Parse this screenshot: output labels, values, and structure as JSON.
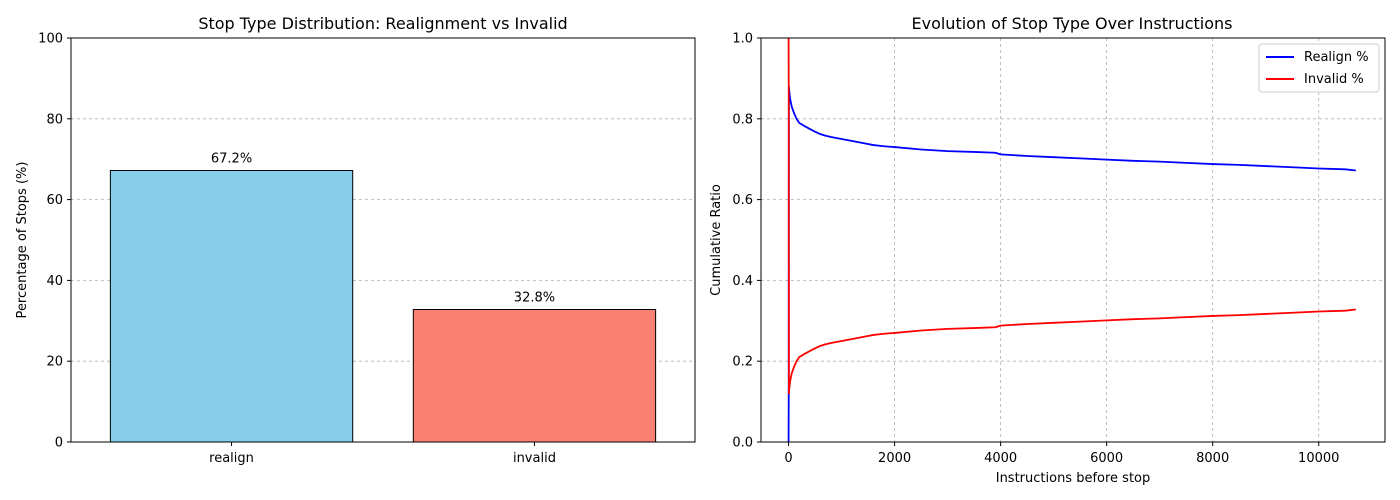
{
  "chart_data": [
    {
      "type": "bar",
      "title": "Stop Type Distribution: Realignment vs Invalid",
      "xlabel": "",
      "ylabel": "Percentage of Stops (%)",
      "categories": [
        "realign",
        "invalid"
      ],
      "values": [
        67.2,
        32.8
      ],
      "value_labels": [
        "67.2%",
        "32.8%"
      ],
      "colors": [
        "#87CEEB",
        "#FA8072"
      ],
      "edge_color": "#000000",
      "ylim": [
        0,
        100
      ],
      "yticks": [
        0,
        20,
        40,
        60,
        80,
        100
      ],
      "grid": "y-dashed"
    },
    {
      "type": "line",
      "title": "Evolution of Stop Type Over Instructions",
      "xlabel": "Instructions before stop",
      "ylabel": "Cumulative Ratio",
      "xlim": [
        -520,
        11250
      ],
      "ylim": [
        0.0,
        1.0
      ],
      "xticks": [
        0,
        2000,
        4000,
        6000,
        8000,
        10000
      ],
      "yticks": [
        0.0,
        0.2,
        0.4,
        0.6,
        0.8,
        1.0
      ],
      "grid": "both-dashed",
      "legend": "top-right",
      "series": [
        {
          "name": "Realign %",
          "color": "#0000FF",
          "x": [
            0,
            3,
            6,
            12,
            20,
            35,
            60,
            100,
            150,
            200,
            300,
            400,
            500,
            600,
            700,
            800,
            1000,
            1200,
            1400,
            1600,
            1800,
            2000,
            2500,
            3000,
            3500,
            3900,
            4000,
            4500,
            5000,
            5500,
            6000,
            6500,
            7000,
            7500,
            8000,
            8500,
            9000,
            9500,
            10000,
            10500,
            10700
          ],
          "y": [
            0.0,
            0.12,
            0.88,
            0.87,
            0.86,
            0.845,
            0.83,
            0.815,
            0.8,
            0.79,
            0.782,
            0.775,
            0.768,
            0.762,
            0.758,
            0.755,
            0.75,
            0.745,
            0.74,
            0.735,
            0.732,
            0.73,
            0.724,
            0.72,
            0.718,
            0.716,
            0.712,
            0.708,
            0.705,
            0.702,
            0.699,
            0.696,
            0.694,
            0.691,
            0.688,
            0.686,
            0.683,
            0.68,
            0.677,
            0.675,
            0.672
          ]
        },
        {
          "name": "Invalid %",
          "color": "#FF0000",
          "x": [
            0,
            3,
            6,
            12,
            20,
            35,
            60,
            100,
            150,
            200,
            300,
            400,
            500,
            600,
            700,
            800,
            1000,
            1200,
            1400,
            1600,
            1800,
            2000,
            2500,
            3000,
            3500,
            3900,
            4000,
            4500,
            5000,
            5500,
            6000,
            6500,
            7000,
            7500,
            8000,
            8500,
            9000,
            9500,
            10000,
            10500,
            10700
          ],
          "y": [
            1.0,
            0.88,
            0.12,
            0.13,
            0.14,
            0.155,
            0.17,
            0.185,
            0.2,
            0.21,
            0.218,
            0.225,
            0.232,
            0.238,
            0.242,
            0.245,
            0.25,
            0.255,
            0.26,
            0.265,
            0.268,
            0.27,
            0.276,
            0.28,
            0.282,
            0.284,
            0.288,
            0.292,
            0.295,
            0.298,
            0.301,
            0.304,
            0.306,
            0.309,
            0.312,
            0.314,
            0.317,
            0.32,
            0.323,
            0.325,
            0.328
          ]
        }
      ]
    }
  ]
}
